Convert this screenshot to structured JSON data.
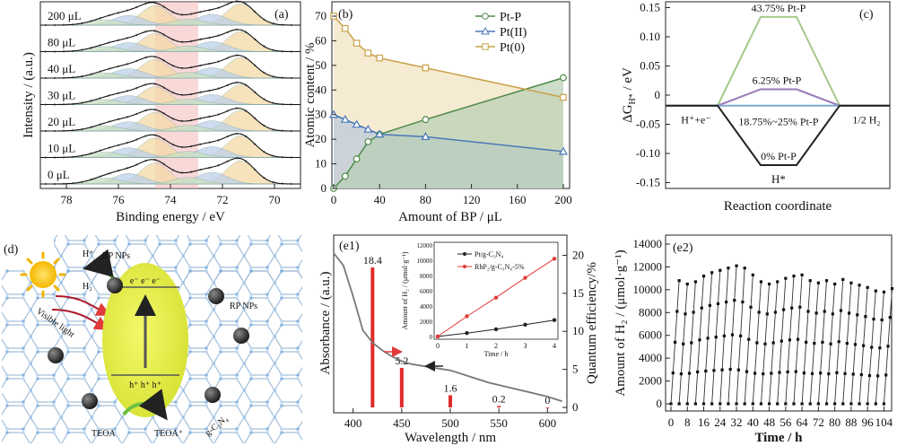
{
  "chart_data": [
    {
      "panel": "(a)",
      "type": "line",
      "xlabel": "Binding energy / eV",
      "ylabel": "Intensity / (a.u.)",
      "xticks": [
        "78",
        "76",
        "74",
        "72",
        "70"
      ],
      "series": [
        {
          "name": "200 μL",
          "peak_height": 0.65
        },
        {
          "name": "80 μL",
          "peak_height": 0.6
        },
        {
          "name": "40 μL",
          "peak_height": 0.62
        },
        {
          "name": "30 μL",
          "peak_height": 0.6
        },
        {
          "name": "20 μL",
          "peak_height": 0.62
        },
        {
          "name": "10 μL",
          "peak_height": 0.65
        },
        {
          "name": "0 μL",
          "peak_height": 0.7
        }
      ],
      "peaks_eV": [
        74.6,
        71.3
      ]
    },
    {
      "panel": "(b)",
      "type": "line",
      "xlabel": "Amount of BP / μL",
      "ylabel": "Atomic content / %",
      "xlim": [
        0,
        200
      ],
      "ylim": [
        0,
        70
      ],
      "xticks": [
        "0",
        "40",
        "80",
        "120",
        "160",
        "200"
      ],
      "yticks": [
        "0",
        "10",
        "20",
        "30",
        "40",
        "50",
        "60",
        "70"
      ],
      "x": [
        0,
        10,
        20,
        30,
        40,
        80,
        200
      ],
      "series": [
        {
          "name": "Pt-P",
          "color": "#4f8a4a",
          "values": [
            0,
            5,
            12,
            19,
            22,
            28,
            45
          ]
        },
        {
          "name": "Pt(II)",
          "color": "#4a78b8",
          "values": [
            30,
            28,
            26,
            24,
            22,
            21,
            15
          ]
        },
        {
          "name": "Pt(0)",
          "color": "#c9a24a",
          "values": [
            70,
            65,
            59,
            55,
            53,
            49,
            37
          ]
        }
      ]
    },
    {
      "panel": "(c)",
      "type": "line",
      "xlabel": "Reaction coordinate",
      "ylabel": "ΔG",
      "ylabel_sub": "H*",
      "ylabel_unit": " / eV",
      "ylim": [
        -0.16,
        0.16
      ],
      "yticks": [
        "0.15",
        "0.10",
        "0.05",
        "0",
        "-0.05",
        "-0.10",
        "-0.15"
      ],
      "states": [
        "H⁺+e⁻",
        "H*",
        "1/2 H₂"
      ],
      "series": [
        {
          "name": "43.75% Pt-P",
          "color": "#a6c98a",
          "values": [
            -0.018,
            0.134,
            -0.018
          ]
        },
        {
          "name": "6.25% Pt-P",
          "color": "#9b79b8",
          "values": [
            -0.018,
            0.01,
            -0.018
          ]
        },
        {
          "name": "18.75%~25% Pt-P",
          "color": "#7ea9cf",
          "values": [
            -0.018,
            -0.018,
            -0.018
          ]
        },
        {
          "name": "0% Pt-P",
          "color": "#222222",
          "values": [
            -0.018,
            -0.12,
            -0.018
          ]
        }
      ]
    },
    {
      "panel": "(e1)",
      "type": "bar",
      "xlabel": "Wavelength / nm",
      "ylabel": "Absorbance / (a.u.)",
      "ylabel_right": "Quantum efficiency/%",
      "xlim": [
        380,
        620
      ],
      "ylim_right": [
        0,
        21
      ],
      "xticks": [
        "400",
        "450",
        "500",
        "550",
        "600"
      ],
      "yticks_right": [
        "0",
        "5",
        "10",
        "15",
        "20"
      ],
      "categories": [
        420,
        450,
        500,
        550,
        600
      ],
      "values": [
        18.4,
        5.2,
        1.6,
        0.2,
        0
      ],
      "labels": [
        "18.4",
        "5.2",
        "1.6",
        "0.2",
        "0"
      ],
      "absorbance": {
        "x": [
          380,
          390,
          400,
          410,
          420,
          430,
          440,
          450,
          460,
          480,
          500,
          520,
          540,
          560,
          580,
          600,
          615
        ],
        "y": [
          1.0,
          0.92,
          0.72,
          0.5,
          0.42,
          0.37,
          0.33,
          0.3,
          0.28,
          0.26,
          0.24,
          0.2,
          0.16,
          0.13,
          0.1,
          0.07,
          0.04
        ]
      },
      "inset": {
        "type": "line",
        "xlabel": "Time / h",
        "ylabel": "Amount of H₂ / (μmol·g⁻¹)",
        "xlim": [
          0,
          4
        ],
        "ylim": [
          0,
          12000
        ],
        "xticks": [
          "0",
          "1",
          "2",
          "3",
          "4"
        ],
        "yticks": [
          "0",
          "2000",
          "4000",
          "6000",
          "8000",
          "10000",
          "12000"
        ],
        "x": [
          0,
          1,
          2,
          3,
          4
        ],
        "series": [
          {
            "name": "Pt/g-C₃N₄",
            "color": "#222222",
            "values": [
              0,
              450,
              950,
              1550,
              2150
            ]
          },
          {
            "name": "RhP₂/g-C₃N₄-5%",
            "color": "#e03a3a",
            "values": [
              0,
              2650,
              5100,
              7700,
              10200
            ]
          }
        ]
      }
    },
    {
      "panel": "(e2)",
      "type": "line",
      "xlabel": "Time / h",
      "ylabel": "Amount of H₂ / (μmol·g⁻¹)",
      "xlim": [
        0,
        106
      ],
      "ylim": [
        0,
        14000
      ],
      "xticks": [
        "0",
        "8",
        "16",
        "24",
        "32",
        "40",
        "48",
        "56",
        "64",
        "72",
        "80",
        "88",
        "96",
        "104"
      ],
      "yticks": [
        "0",
        "2000",
        "4000",
        "6000",
        "8000",
        "10000",
        "12000",
        "14000"
      ],
      "cycles": 27,
      "cycle_hours": 4,
      "cycle_max": [
        10800,
        10500,
        10700,
        11200,
        11500,
        11700,
        11900,
        12100,
        11900,
        11300,
        10700,
        10500,
        10700,
        11000,
        11200,
        11300,
        10800,
        10600,
        10800,
        10500,
        10900,
        10600,
        10400,
        10200,
        9900,
        9800,
        10100
      ]
    }
  ],
  "panel_d": {
    "label": "(d)",
    "texts": {
      "h_plus": "H⁺",
      "h2": "H₂",
      "rp_nps_top": "RP NPs",
      "rp_nps_right": "RP NPs",
      "visible_light": "Visible light",
      "teoa": "TEOA",
      "teoa_plus": "TEOA⁺",
      "gcn": "g-C₃N₄",
      "electrons": "e⁻ e⁻ e⁻",
      "holes": "h⁺ h⁺ h⁺"
    }
  }
}
